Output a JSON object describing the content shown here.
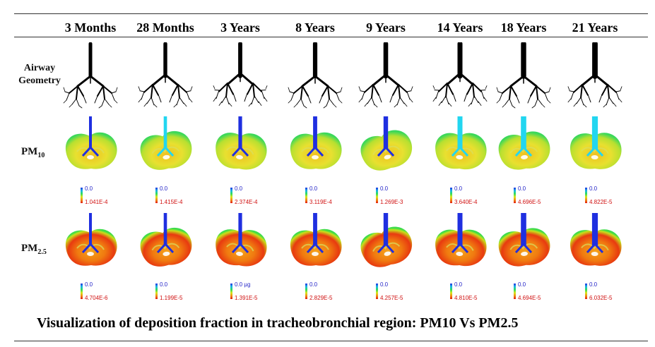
{
  "columns": [
    "3 Months",
    "28 Months",
    "3 Years",
    "8 Years",
    "9 Years",
    "14 Years",
    "18 Years",
    "21 Years"
  ],
  "rows": {
    "geometry": {
      "label_line1": "Airway",
      "label_line2": "Geometry"
    },
    "pm10": {
      "label_base": "PM",
      "label_sub": "10",
      "scales": [
        {
          "min": "0.0",
          "max": "1.041E-4"
        },
        {
          "min": "0.0",
          "max": "1.415E-4"
        },
        {
          "min": "0.0",
          "max": "2.374E-4"
        },
        {
          "min": "0.0",
          "max": "3.119E-4"
        },
        {
          "min": "0.0",
          "max": "1.269E-3"
        },
        {
          "min": "0.0",
          "max": "3.640E-4"
        },
        {
          "min": "0.0",
          "max": "4.696E-5"
        },
        {
          "min": "0.0",
          "max": "4.822E-5"
        }
      ]
    },
    "pm25": {
      "label_base": "PM",
      "label_sub": "2.5",
      "scales": [
        {
          "min": "0.0",
          "max": "4.704E-6"
        },
        {
          "min": "0.0",
          "max": "1.199E-5"
        },
        {
          "min": "0.0 µg",
          "max": "1.391E-5"
        },
        {
          "min": "0.0",
          "max": "2.829E-5"
        },
        {
          "min": "0.0",
          "max": "4.257E-5"
        },
        {
          "min": "0.0",
          "max": "4.810E-5"
        },
        {
          "min": "0.0",
          "max": "4.694E-5"
        },
        {
          "min": "0.0",
          "max": "6.032E-5"
        }
      ]
    }
  },
  "caption": "Visualization of deposition fraction in tracheobronchial region: PM10 Vs PM2.5",
  "colors": {
    "scale_min_text": "#2424c8",
    "scale_max_text": "#d01010",
    "trachea_blue": "#1f2fe0",
    "trachea_cyan": "#22d6f0"
  }
}
